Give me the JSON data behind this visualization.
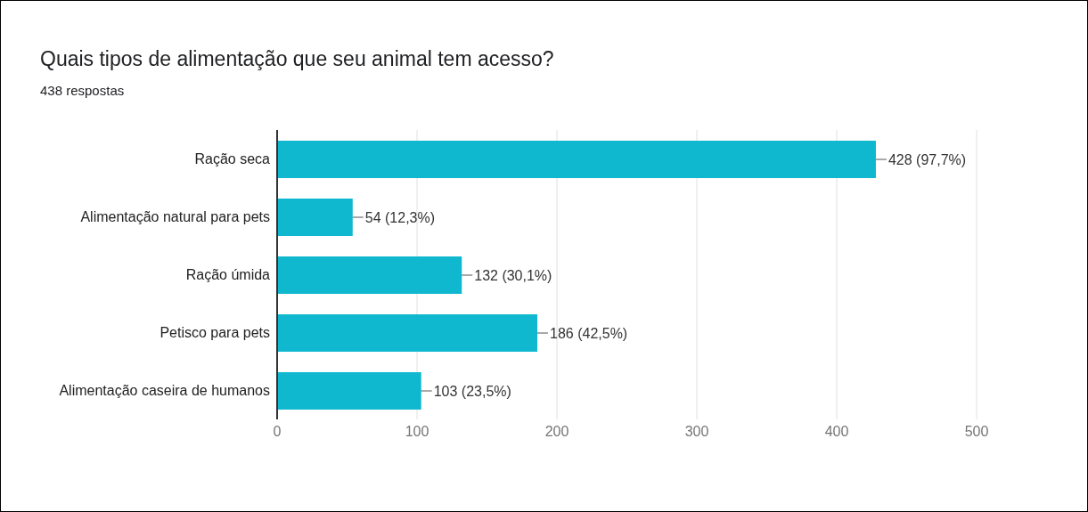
{
  "chart_data": {
    "type": "bar",
    "orientation": "horizontal",
    "title": "Quais tipos de alimentação que seu animal tem acesso?",
    "subtitle": "438 respostas",
    "categories": [
      "Ração seca",
      "Alimentação natural para pets",
      "Ração úmida",
      "Petisco para pets",
      "Alimentação caseira de humanos"
    ],
    "values": [
      428,
      54,
      132,
      186,
      103
    ],
    "color": "#10b8cf",
    "value_labels": [
      "428 (97,7%)",
      "54 (12,3%)",
      "132 (30,1%)",
      "186 (42,5%)",
      "103 (23,5%)"
    ],
    "xlim": [
      0,
      500
    ],
    "xticks": [
      0,
      100,
      200,
      300,
      400,
      500
    ],
    "grid": "x"
  }
}
